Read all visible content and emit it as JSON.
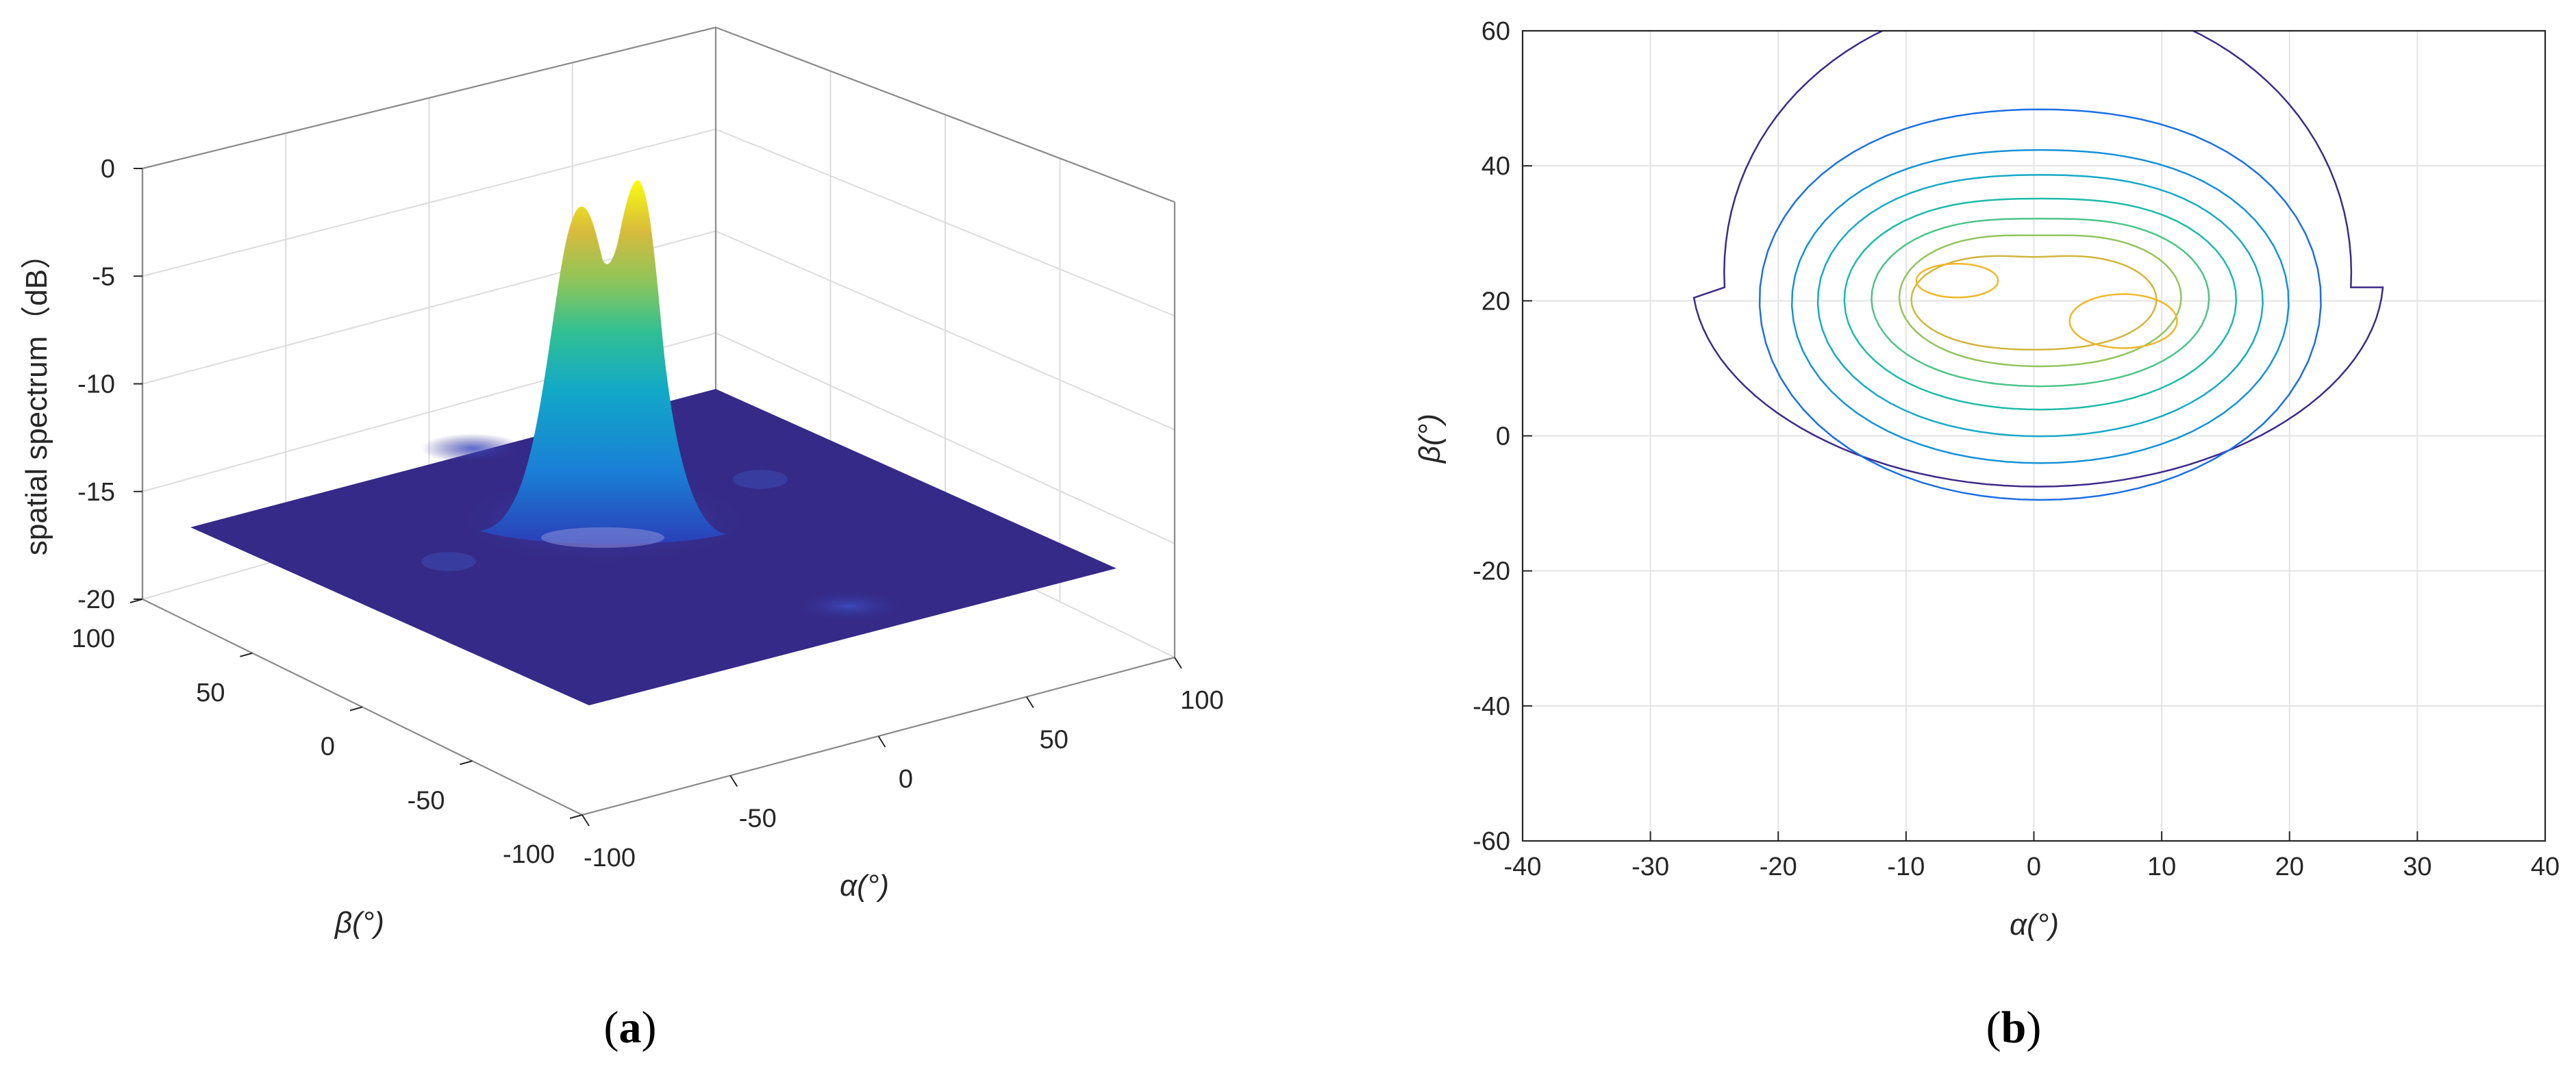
{
  "chart_data": [
    {
      "type": "surface",
      "panel_label": "a",
      "zlabel": "spatial spectrum（dB）",
      "xlabel": "α(°)",
      "ylabel": "β(°)",
      "xlim": [
        -100,
        100
      ],
      "ylim": [
        -100,
        100
      ],
      "zlim": [
        -20,
        0
      ],
      "x_ticks": [
        "-100",
        "-50",
        "0",
        "50",
        "100"
      ],
      "y_ticks": [
        "-100",
        "-50",
        "0",
        "50",
        "100"
      ],
      "z_ticks": [
        "0",
        "-5",
        "-10",
        "-15",
        "-20"
      ],
      "floor_level": -20,
      "peaks": [
        {
          "alpha": -6,
          "beta": 23,
          "value": -1.5
        },
        {
          "alpha": 7,
          "beta": 17,
          "value": -0.3
        }
      ],
      "colormap": [
        "#352a87",
        "#1a7fd6",
        "#0fb3b5",
        "#65c36a",
        "#d3ba3f",
        "#f9fb0e"
      ],
      "grid": true
    },
    {
      "type": "contour",
      "panel_label": "b",
      "xlabel": "α(°)",
      "ylabel": "β(°)",
      "xlim": [
        -40,
        40
      ],
      "ylim": [
        -60,
        60
      ],
      "x_ticks": [
        "-40",
        "-30",
        "-20",
        "-10",
        "0",
        "10",
        "20",
        "30",
        "40"
      ],
      "y_ticks": [
        "60",
        "40",
        "20",
        "0",
        "-20",
        "-40",
        "-60"
      ],
      "peaks": [
        {
          "alpha": -6,
          "beta": 23
        },
        {
          "alpha": 7,
          "beta": 17
        }
      ],
      "level_colors": [
        "#3d2a88",
        "#1c6fe2",
        "#1492d6",
        "#17a9c4",
        "#1dbaa8",
        "#4cc488",
        "#93c45d",
        "#d0b63c",
        "#efb82a"
      ],
      "grid": true
    }
  ]
}
